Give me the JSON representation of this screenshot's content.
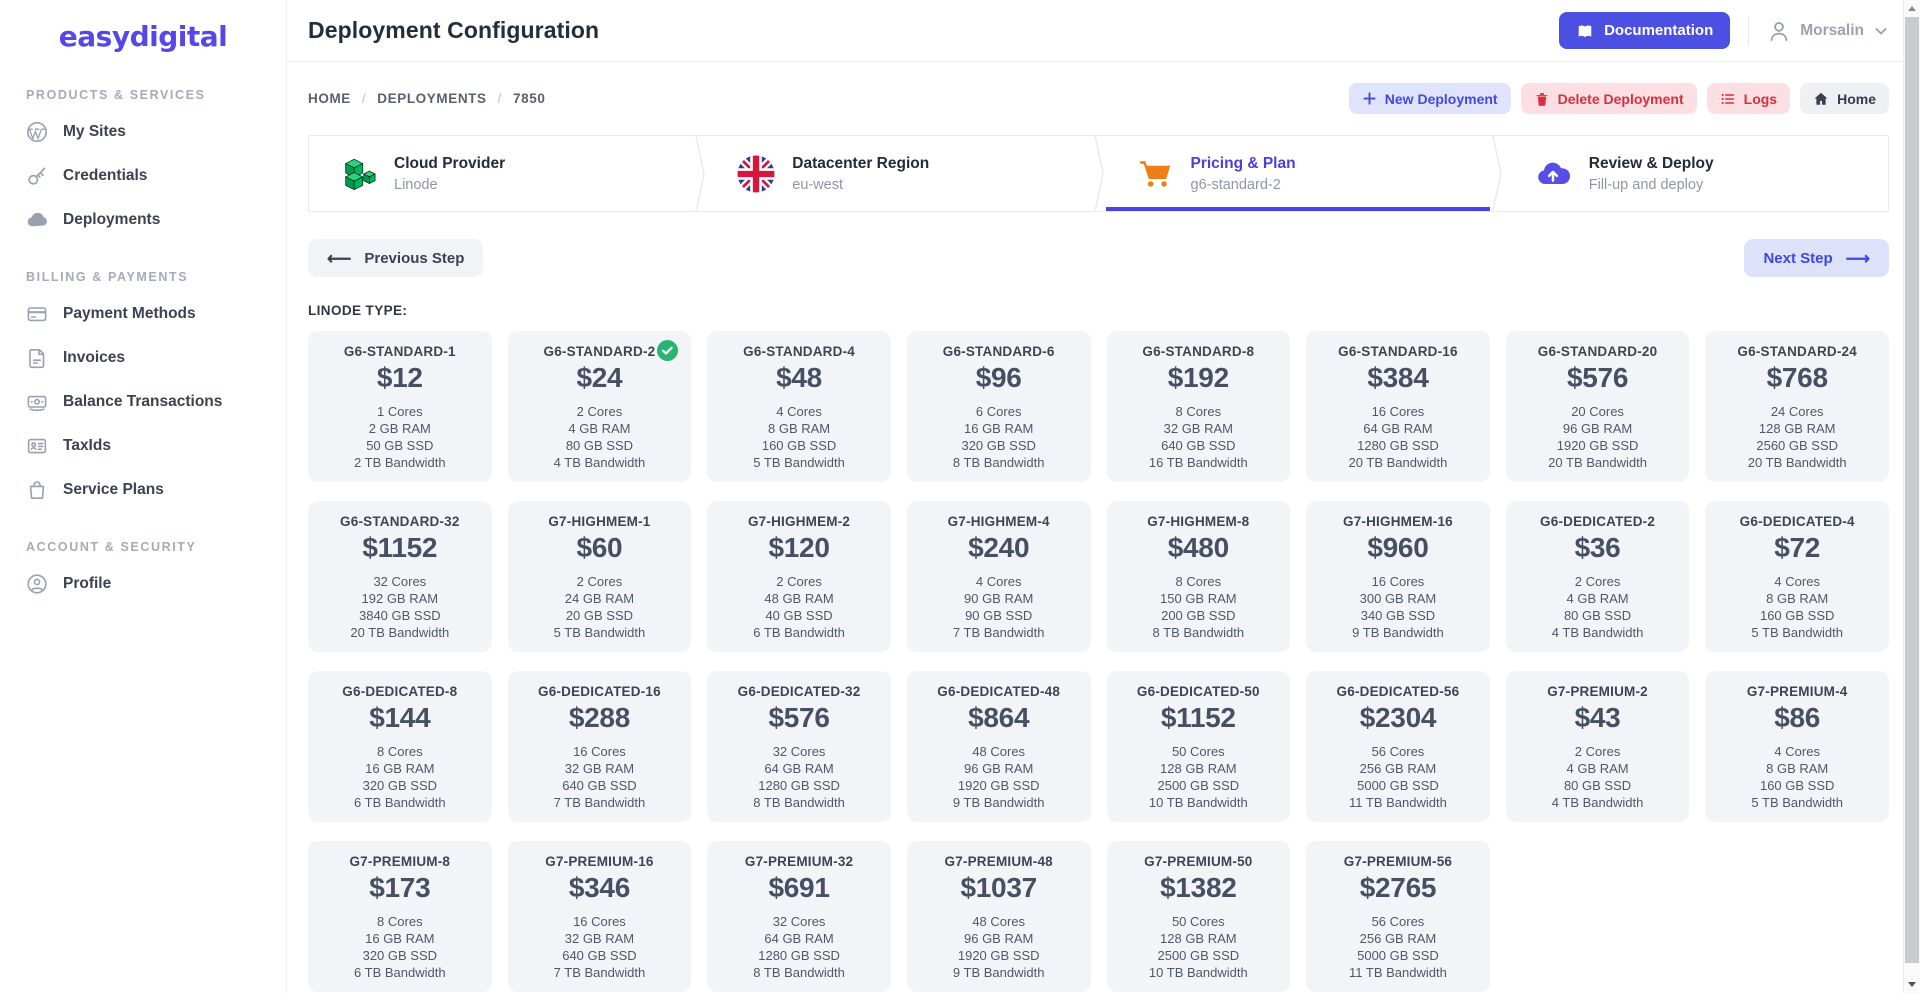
{
  "colors": {
    "primary_indigo": "#4b4fe2",
    "light_indigo_bg": "#dfe3fb",
    "danger_red": "#dc2e3e",
    "light_red_bg": "#fbdfe3",
    "success_green": "#28b573",
    "linode_green": "#00b15c",
    "cart_orange": "#ee7f17",
    "card_bg": "#f3f4f7"
  },
  "sidebar": {
    "logo": "easydigital",
    "sections": [
      {
        "label": "PRODUCTS & SERVICES",
        "items": [
          {
            "label": "My Sites",
            "icon": "wordpress-icon"
          },
          {
            "label": "Credentials",
            "icon": "key-icon"
          },
          {
            "label": "Deployments",
            "icon": "cloud-icon"
          }
        ]
      },
      {
        "label": "BILLING & PAYMENTS",
        "items": [
          {
            "label": "Payment Methods",
            "icon": "credit-card-icon"
          },
          {
            "label": "Invoices",
            "icon": "invoice-icon"
          },
          {
            "label": "Balance Transactions",
            "icon": "cash-icon"
          },
          {
            "label": "TaxIds",
            "icon": "id-card-icon"
          },
          {
            "label": "Service Plans",
            "icon": "shopping-bag-icon"
          }
        ]
      },
      {
        "label": "ACCOUNT & SECURITY",
        "items": [
          {
            "label": "Profile",
            "icon": "user-circle-icon"
          }
        ]
      }
    ]
  },
  "header": {
    "title": "Deployment Configuration",
    "documentation_label": "Documentation",
    "user_name": "Morsalin"
  },
  "breadcrumb": [
    "HOME",
    "DEPLOYMENTS",
    "7850"
  ],
  "actions": {
    "new_deployment": "New Deployment",
    "delete_deployment": "Delete Deployment",
    "logs": "Logs",
    "home": "Home"
  },
  "wizard": {
    "steps": [
      {
        "title": "Cloud Provider",
        "subtitle": "Linode",
        "icon": "linode-icon",
        "active": false
      },
      {
        "title": "Datacenter Region",
        "subtitle": "eu-west",
        "icon": "uk-flag-icon",
        "active": false
      },
      {
        "title": "Pricing & Plan",
        "subtitle": "g6-standard-2",
        "icon": "cart-icon",
        "active": true
      },
      {
        "title": "Review & Deploy",
        "subtitle": "Fill-up and deploy",
        "icon": "cloud-upload-icon",
        "active": false
      }
    ]
  },
  "nav_buttons": {
    "previous": "Previous Step",
    "next": "Next Step"
  },
  "plans": {
    "section_label": "LINODE TYPE:",
    "selected": "G6-STANDARD-2",
    "items": [
      {
        "name": "G6-STANDARD-1",
        "price": "$12",
        "specs": [
          "1 Cores",
          "2 GB RAM",
          "50 GB SSD",
          "2 TB Bandwidth"
        ],
        "selected": false
      },
      {
        "name": "G6-STANDARD-2",
        "price": "$24",
        "specs": [
          "2 Cores",
          "4 GB RAM",
          "80 GB SSD",
          "4 TB Bandwidth"
        ],
        "selected": true
      },
      {
        "name": "G6-STANDARD-4",
        "price": "$48",
        "specs": [
          "4 Cores",
          "8 GB RAM",
          "160 GB SSD",
          "5 TB Bandwidth"
        ],
        "selected": false
      },
      {
        "name": "G6-STANDARD-6",
        "price": "$96",
        "specs": [
          "6 Cores",
          "16 GB RAM",
          "320 GB SSD",
          "8 TB Bandwidth"
        ],
        "selected": false
      },
      {
        "name": "G6-STANDARD-8",
        "price": "$192",
        "specs": [
          "8 Cores",
          "32 GB RAM",
          "640 GB SSD",
          "16 TB Bandwidth"
        ],
        "selected": false
      },
      {
        "name": "G6-STANDARD-16",
        "price": "$384",
        "specs": [
          "16 Cores",
          "64 GB RAM",
          "1280 GB SSD",
          "20 TB Bandwidth"
        ],
        "selected": false
      },
      {
        "name": "G6-STANDARD-20",
        "price": "$576",
        "specs": [
          "20 Cores",
          "96 GB RAM",
          "1920 GB SSD",
          "20 TB Bandwidth"
        ],
        "selected": false
      },
      {
        "name": "G6-STANDARD-24",
        "price": "$768",
        "specs": [
          "24 Cores",
          "128 GB RAM",
          "2560 GB SSD",
          "20 TB Bandwidth"
        ],
        "selected": false
      },
      {
        "name": "G6-STANDARD-32",
        "price": "$1152",
        "specs": [
          "32 Cores",
          "192 GB RAM",
          "3840 GB SSD",
          "20 TB Bandwidth"
        ],
        "selected": false
      },
      {
        "name": "G7-HIGHMEM-1",
        "price": "$60",
        "specs": [
          "2 Cores",
          "24 GB RAM",
          "20 GB SSD",
          "5 TB Bandwidth"
        ],
        "selected": false
      },
      {
        "name": "G7-HIGHMEM-2",
        "price": "$120",
        "specs": [
          "2 Cores",
          "48 GB RAM",
          "40 GB SSD",
          "6 TB Bandwidth"
        ],
        "selected": false
      },
      {
        "name": "G7-HIGHMEM-4",
        "price": "$240",
        "specs": [
          "4 Cores",
          "90 GB RAM",
          "90 GB SSD",
          "7 TB Bandwidth"
        ],
        "selected": false
      },
      {
        "name": "G7-HIGHMEM-8",
        "price": "$480",
        "specs": [
          "8 Cores",
          "150 GB RAM",
          "200 GB SSD",
          "8 TB Bandwidth"
        ],
        "selected": false
      },
      {
        "name": "G7-HIGHMEM-16",
        "price": "$960",
        "specs": [
          "16 Cores",
          "300 GB RAM",
          "340 GB SSD",
          "9 TB Bandwidth"
        ],
        "selected": false
      },
      {
        "name": "G6-DEDICATED-2",
        "price": "$36",
        "specs": [
          "2 Cores",
          "4 GB RAM",
          "80 GB SSD",
          "4 TB Bandwidth"
        ],
        "selected": false
      },
      {
        "name": "G6-DEDICATED-4",
        "price": "$72",
        "specs": [
          "4 Cores",
          "8 GB RAM",
          "160 GB SSD",
          "5 TB Bandwidth"
        ],
        "selected": false
      },
      {
        "name": "G6-DEDICATED-8",
        "price": "$144",
        "specs": [
          "8 Cores",
          "16 GB RAM",
          "320 GB SSD",
          "6 TB Bandwidth"
        ],
        "selected": false
      },
      {
        "name": "G6-DEDICATED-16",
        "price": "$288",
        "specs": [
          "16 Cores",
          "32 GB RAM",
          "640 GB SSD",
          "7 TB Bandwidth"
        ],
        "selected": false
      },
      {
        "name": "G6-DEDICATED-32",
        "price": "$576",
        "specs": [
          "32 Cores",
          "64 GB RAM",
          "1280 GB SSD",
          "8 TB Bandwidth"
        ],
        "selected": false
      },
      {
        "name": "G6-DEDICATED-48",
        "price": "$864",
        "specs": [
          "48 Cores",
          "96 GB RAM",
          "1920 GB SSD",
          "9 TB Bandwidth"
        ],
        "selected": false
      },
      {
        "name": "G6-DEDICATED-50",
        "price": "$1152",
        "specs": [
          "50 Cores",
          "128 GB RAM",
          "2500 GB SSD",
          "10 TB Bandwidth"
        ],
        "selected": false
      },
      {
        "name": "G6-DEDICATED-56",
        "price": "$2304",
        "specs": [
          "56 Cores",
          "256 GB RAM",
          "5000 GB SSD",
          "11 TB Bandwidth"
        ],
        "selected": false
      },
      {
        "name": "G7-PREMIUM-2",
        "price": "$43",
        "specs": [
          "2 Cores",
          "4 GB RAM",
          "80 GB SSD",
          "4 TB Bandwidth"
        ],
        "selected": false
      },
      {
        "name": "G7-PREMIUM-4",
        "price": "$86",
        "specs": [
          "4 Cores",
          "8 GB RAM",
          "160 GB SSD",
          "5 TB Bandwidth"
        ],
        "selected": false
      },
      {
        "name": "G7-PREMIUM-8",
        "price": "$173",
        "specs": [
          "8 Cores",
          "16 GB RAM",
          "320 GB SSD",
          "6 TB Bandwidth"
        ],
        "selected": false
      },
      {
        "name": "G7-PREMIUM-16",
        "price": "$346",
        "specs": [
          "16 Cores",
          "32 GB RAM",
          "640 GB SSD",
          "7 TB Bandwidth"
        ],
        "selected": false
      },
      {
        "name": "G7-PREMIUM-32",
        "price": "$691",
        "specs": [
          "32 Cores",
          "64 GB RAM",
          "1280 GB SSD",
          "8 TB Bandwidth"
        ],
        "selected": false
      },
      {
        "name": "G7-PREMIUM-48",
        "price": "$1037",
        "specs": [
          "48 Cores",
          "96 GB RAM",
          "1920 GB SSD",
          "9 TB Bandwidth"
        ],
        "selected": false
      },
      {
        "name": "G7-PREMIUM-50",
        "price": "$1382",
        "specs": [
          "50 Cores",
          "128 GB RAM",
          "2500 GB SSD",
          "10 TB Bandwidth"
        ],
        "selected": false
      },
      {
        "name": "G7-PREMIUM-56",
        "price": "$2765",
        "specs": [
          "56 Cores",
          "256 GB RAM",
          "5000 GB SSD",
          "11 TB Bandwidth"
        ],
        "selected": false
      }
    ]
  }
}
